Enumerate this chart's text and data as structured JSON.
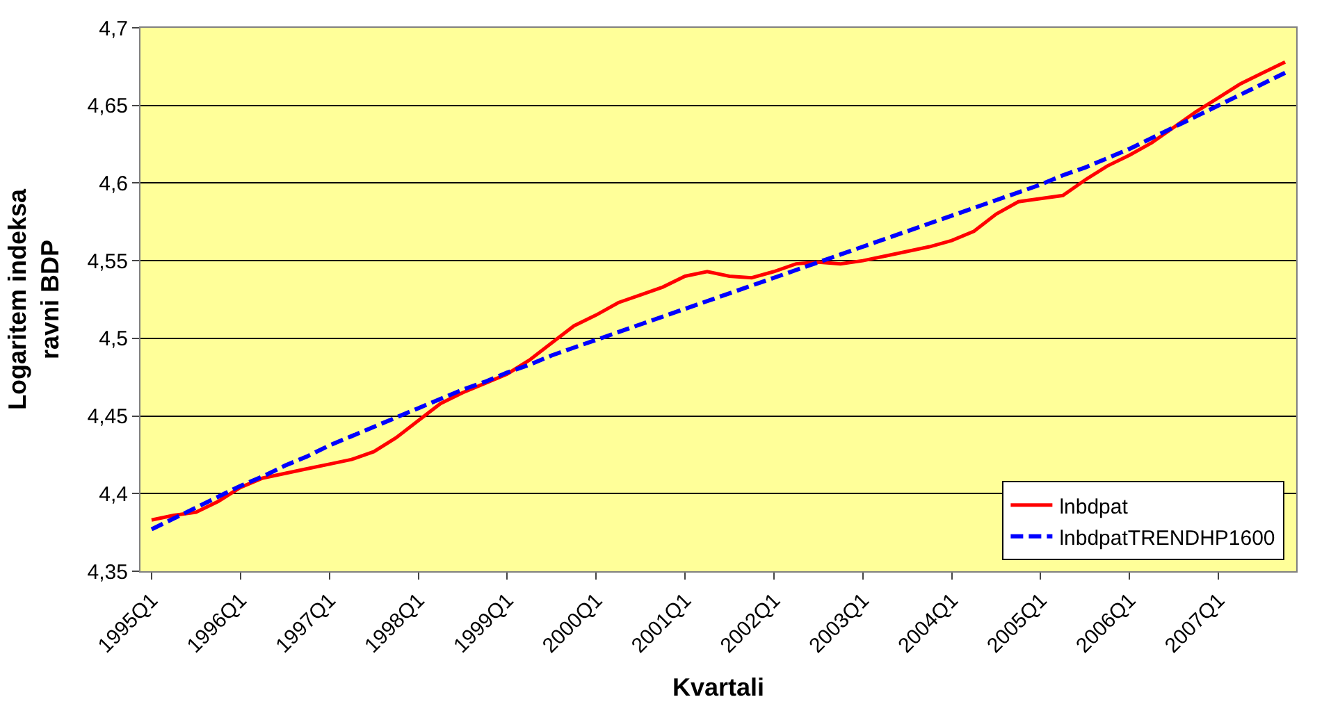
{
  "chart_data": {
    "type": "line",
    "xlabel": "Kvartali",
    "ylabel": "Logaritem indeksa\nravni BDP",
    "categories": [
      "1995Q1",
      null,
      null,
      null,
      "1996Q1",
      null,
      null,
      null,
      "1997Q1",
      null,
      null,
      null,
      "1998Q1",
      null,
      null,
      null,
      "1999Q1",
      null,
      null,
      null,
      "2000Q1",
      null,
      null,
      null,
      "2001Q1",
      null,
      null,
      null,
      "2002Q1",
      null,
      null,
      null,
      "2003Q1",
      null,
      null,
      null,
      "2004Q1",
      null,
      null,
      null,
      "2005Q1",
      null,
      null,
      null,
      "2006Q1",
      null,
      null,
      null,
      "2007Q1",
      null,
      null,
      null
    ],
    "series": [
      {
        "name": "lnbdpat",
        "color": "#ff0000",
        "line_style": "solid",
        "values": [
          4.383,
          4.386,
          4.388,
          4.395,
          4.404,
          4.41,
          4.413,
          4.416,
          4.419,
          4.422,
          4.427,
          4.436,
          4.447,
          4.458,
          4.465,
          4.471,
          4.477,
          4.486,
          4.497,
          4.508,
          4.515,
          4.523,
          4.528,
          4.533,
          4.54,
          4.543,
          4.54,
          4.539,
          4.543,
          4.548,
          4.549,
          4.548,
          4.55,
          4.553,
          4.556,
          4.559,
          4.563,
          4.569,
          4.58,
          4.588,
          4.59,
          4.592,
          4.602,
          4.611,
          4.618,
          4.626,
          4.636,
          4.646,
          4.655,
          4.664,
          4.671,
          4.678
        ]
      },
      {
        "name": "lnbdpatTRENDHP1600",
        "color": "#0000ff",
        "line_style": "dashed",
        "values": [
          4.377,
          4.384,
          4.391,
          4.398,
          4.405,
          4.411,
          4.418,
          4.424,
          4.431,
          4.437,
          4.443,
          4.449,
          4.455,
          4.461,
          4.467,
          4.472,
          4.478,
          4.483,
          4.489,
          4.494,
          4.499,
          4.504,
          4.509,
          4.514,
          4.519,
          4.524,
          4.529,
          4.534,
          4.539,
          4.544,
          4.549,
          4.554,
          4.559,
          4.564,
          4.569,
          4.574,
          4.579,
          4.584,
          4.589,
          4.594,
          4.599,
          4.605,
          4.61,
          4.616,
          4.622,
          4.629,
          4.636,
          4.643,
          4.65,
          4.657,
          4.664,
          4.671
        ]
      }
    ],
    "ylim": [
      4.35,
      4.7
    ],
    "yticks": [
      {
        "value": 4.35,
        "label": "4,35"
      },
      {
        "value": 4.4,
        "label": "4,4"
      },
      {
        "value": 4.45,
        "label": "4,45"
      },
      {
        "value": 4.5,
        "label": "4,5"
      },
      {
        "value": 4.55,
        "label": "4,55"
      },
      {
        "value": 4.6,
        "label": "4,6"
      },
      {
        "value": 4.65,
        "label": "4,65"
      },
      {
        "value": 4.7,
        "label": "4,7"
      }
    ],
    "grid": "y",
    "legend": "bottom right",
    "marker": "none"
  }
}
